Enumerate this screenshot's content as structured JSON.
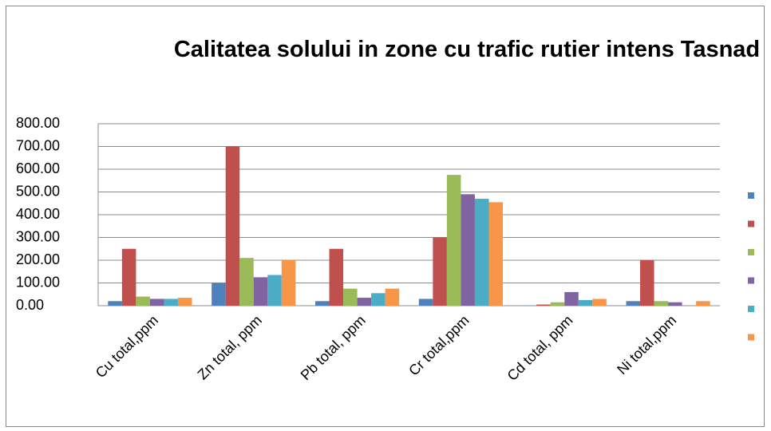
{
  "chart_data": {
    "type": "bar",
    "title": "Calitatea solului in zone cu trafic rutier intens Tasnad",
    "categories": [
      "Cu total,ppm",
      "Zn total, ppm",
      "Pb total, ppm",
      "Cr total,ppm",
      "Cd total, ppm",
      "Ni total,ppm"
    ],
    "series": [
      {
        "color": "#4f81bd",
        "values": [
          20,
          100,
          20,
          30,
          1,
          20
        ]
      },
      {
        "color": "#c0504d",
        "values": [
          250,
          700,
          250,
          300,
          5,
          200
        ]
      },
      {
        "color": "#9bbb59",
        "values": [
          40,
          210,
          75,
          575,
          15,
          20
        ]
      },
      {
        "color": "#8064a2",
        "values": [
          30,
          125,
          35,
          490,
          60,
          15
        ]
      },
      {
        "color": "#4bacc6",
        "values": [
          30,
          135,
          55,
          470,
          25,
          0
        ]
      },
      {
        "color": "#f79646",
        "values": [
          35,
          200,
          75,
          455,
          30,
          20
        ]
      }
    ],
    "ylim": [
      0,
      800
    ],
    "yticks": [
      {
        "value": 0,
        "label": "0.00"
      },
      {
        "value": 100,
        "label": "100.00"
      },
      {
        "value": 200,
        "label": "200.00"
      },
      {
        "value": 300,
        "label": "300.00"
      },
      {
        "value": 400,
        "label": "400.00"
      },
      {
        "value": 500,
        "label": "500.00"
      },
      {
        "value": 600,
        "label": "600.00"
      },
      {
        "value": 700,
        "label": "700.00"
      },
      {
        "value": 800,
        "label": "800.00"
      }
    ],
    "grid": true,
    "legend": "right"
  }
}
